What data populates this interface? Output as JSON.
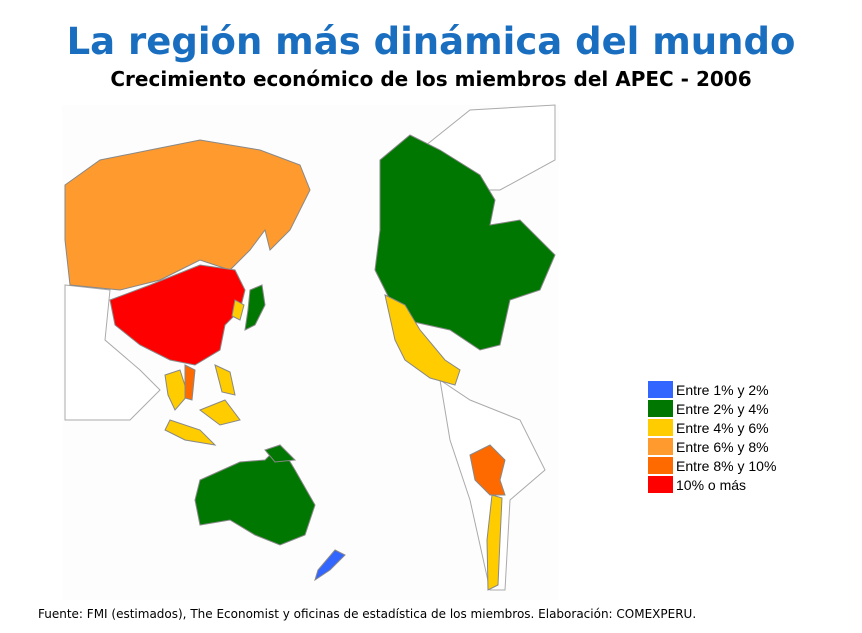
{
  "header": {
    "title": "La región más dinámica del mundo",
    "subtitle": "Crecimiento económico de los miembros del APEC - 2006"
  },
  "legend": [
    {
      "label": "Entre 1% y 2%",
      "color": "#3366ff"
    },
    {
      "label": "Entre 2% y 4%",
      "color": "#007700"
    },
    {
      "label": "Entre 4% y 6%",
      "color": "#ffcc00"
    },
    {
      "label": "Entre 6% y 8%",
      "color": "#ff9a2e"
    },
    {
      "label": "Entre 8% y 10%",
      "color": "#ff6a00"
    },
    {
      "label": "10% o más",
      "color": "#ff0000"
    }
  ],
  "footer": {
    "source": "Fuente: FMI (estimados), The Economist y oficinas de estadística de los miembros. Elaboración: COMEXPERU."
  }
}
